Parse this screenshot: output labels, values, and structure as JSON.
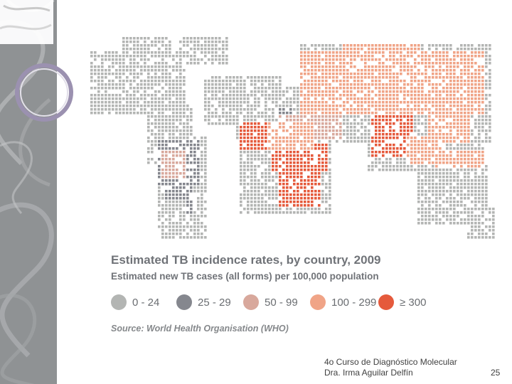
{
  "slide": {
    "title": "Estimated TB incidence rates, by country, 2009",
    "subtitle": "Estimated new TB cases (all forms) per 100,000 population",
    "source": "Source: World Health Organisation (WHO)",
    "footer_line1": "4o Curso de Diagnóstico Molecular",
    "footer_line2": "Dra. Irma Aguilar Delfín",
    "page_number": "25"
  },
  "legend": [
    {
      "label": "0 - 24",
      "color": "#b3b5b3"
    },
    {
      "label": "25 - 29",
      "color": "#85878e"
    },
    {
      "label": "50 - 99",
      "color": "#d8a89c"
    },
    {
      "label": "100 - 299",
      "color": "#f0a487"
    },
    {
      "label": "≥ 300",
      "color": "#e55a3c"
    }
  ]
}
